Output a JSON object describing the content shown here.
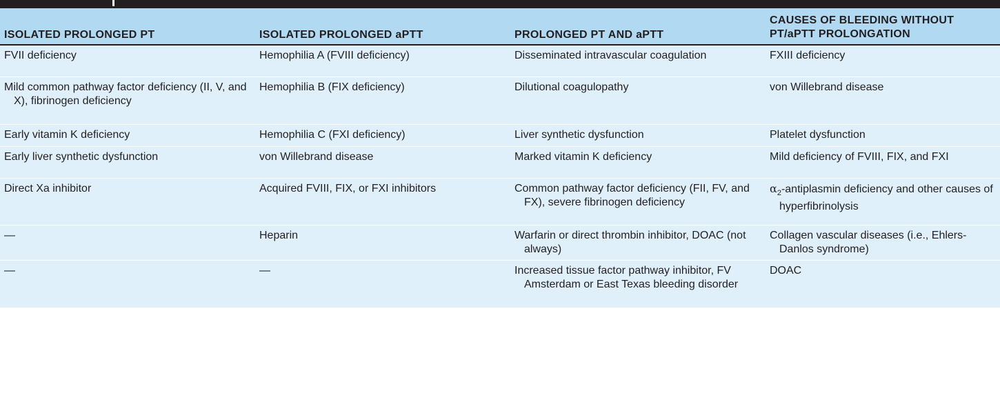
{
  "table": {
    "headers": [
      "ISOLATED PROLONGED PT",
      "ISOLATED PROLONGED aPTT",
      "PROLONGED PT AND aPTT",
      "CAUSES OF BLEEDING WITHOUT PT/aPTT PROLONGATION"
    ],
    "rows": [
      [
        "FVII deficiency",
        "Hemophilia A (FVIII deficiency)",
        "Disseminated intravascular coagulation",
        "FXIII deficiency"
      ],
      [
        "Mild common pathway factor deficiency (II, V, and X), fibrinogen deficiency",
        "Hemophilia B (FIX deficiency)",
        "Dilutional coagulopathy",
        "von Willebrand disease"
      ],
      [
        "Early vitamin K deficiency",
        "Hemophilia C (FXI deficiency)",
        "Liver synthetic dysfunction",
        "Platelet dysfunction"
      ],
      [
        "Early liver synthetic dysfunction",
        "von Willebrand disease",
        "Marked vitamin K deficiency",
        "Mild deficiency of FVIII, FIX, and FXI"
      ],
      [
        "Direct Xa inhibitor",
        "Acquired FVIII, FIX, or FXI inhibitors",
        "Common pathway factor deficiency (FII, FV, and FX), severe fibrinogen deficiency",
        "-antiplasmin deficiency and other causes of hyperfibrinolysis"
      ],
      [
        "—",
        "Heparin",
        "Warfarin or direct thrombin inhibitor, DOAC (not always)",
        "Collagen vascular diseases (i.e., Ehlers-Danlos syndrome)"
      ],
      [
        "—",
        "—",
        "Increased tissue factor pathway inhibitor, FV Amsterdam or East Texas bleeding disorder",
        "DOAC"
      ]
    ],
    "alpha_symbol": "α",
    "alpha_subscript": "2"
  }
}
